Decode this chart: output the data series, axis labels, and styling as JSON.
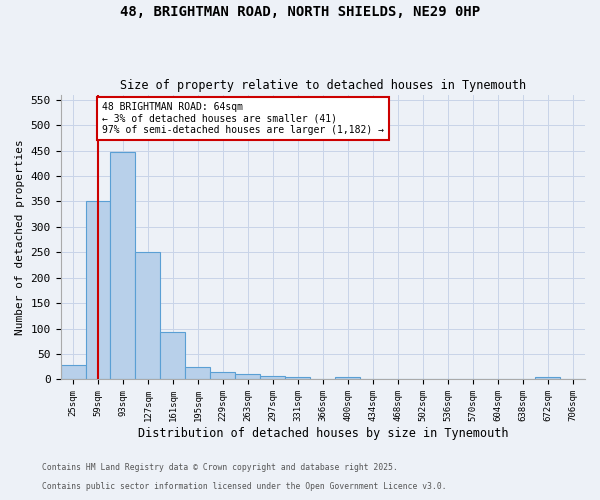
{
  "title1": "48, BRIGHTMAN ROAD, NORTH SHIELDS, NE29 0HP",
  "title2": "Size of property relative to detached houses in Tynemouth",
  "xlabel": "Distribution of detached houses by size in Tynemouth",
  "ylabel": "Number of detached properties",
  "bins": [
    "25sqm",
    "59sqm",
    "93sqm",
    "127sqm",
    "161sqm",
    "195sqm",
    "229sqm",
    "263sqm",
    "297sqm",
    "331sqm",
    "366sqm",
    "400sqm",
    "434sqm",
    "468sqm",
    "502sqm",
    "536sqm",
    "570sqm",
    "604sqm",
    "638sqm",
    "672sqm",
    "706sqm"
  ],
  "values": [
    29,
    350,
    448,
    251,
    93,
    25,
    15,
    11,
    7,
    5,
    0,
    4,
    0,
    0,
    0,
    0,
    0,
    0,
    0,
    4,
    0
  ],
  "bar_color": "#b8d0ea",
  "bar_edge_color": "#5a9fd4",
  "vline_x": 1,
  "vline_color": "#cc0000",
  "annotation_text": "48 BRIGHTMAN ROAD: 64sqm\n← 3% of detached houses are smaller (41)\n97% of semi-detached houses are larger (1,182) →",
  "annotation_box_color": "#ffffff",
  "annotation_box_edgecolor": "#cc0000",
  "ylim": [
    0,
    560
  ],
  "yticks": [
    0,
    50,
    100,
    150,
    200,
    250,
    300,
    350,
    400,
    450,
    500,
    550
  ],
  "footer1": "Contains HM Land Registry data © Crown copyright and database right 2025.",
  "footer2": "Contains public sector information licensed under the Open Government Licence v3.0.",
  "bg_color": "#edf1f7"
}
